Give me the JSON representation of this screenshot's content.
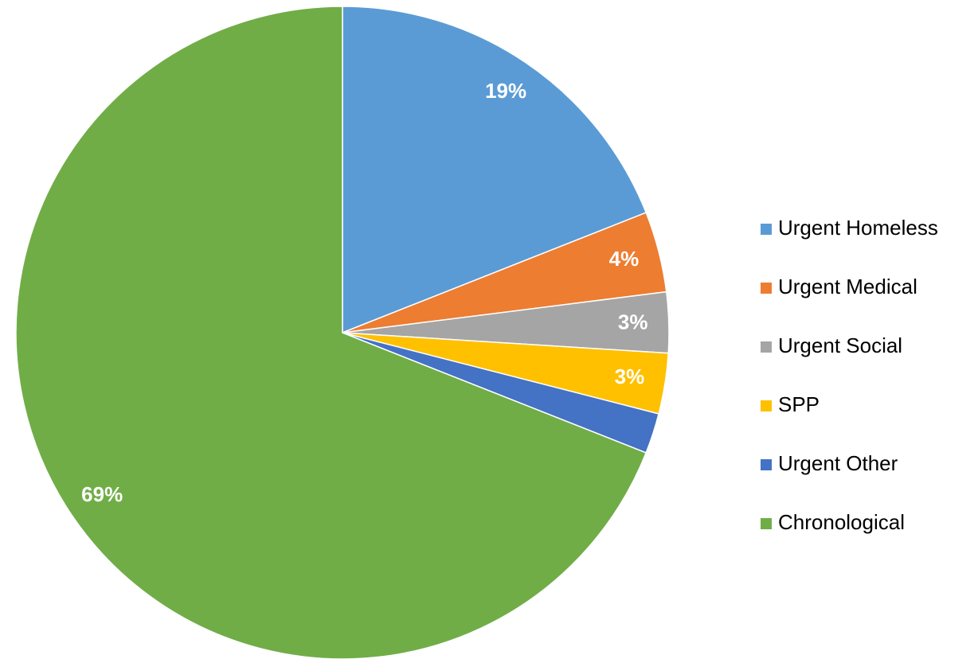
{
  "chart_data": {
    "type": "pie",
    "categories": [
      "Urgent Homeless",
      "Urgent Medical",
      "Urgent Social",
      "SPP",
      "Urgent Other",
      "Chronological"
    ],
    "values": [
      19,
      4,
      3,
      3,
      2,
      69
    ],
    "value_labels": [
      "19%",
      "4%",
      "3%",
      "3%",
      null,
      "69%"
    ],
    "colors": [
      "#5b9bd5",
      "#ed7d31",
      "#a5a5a5",
      "#ffc000",
      "#4472c4",
      "#70ad47"
    ],
    "legend": "right"
  }
}
